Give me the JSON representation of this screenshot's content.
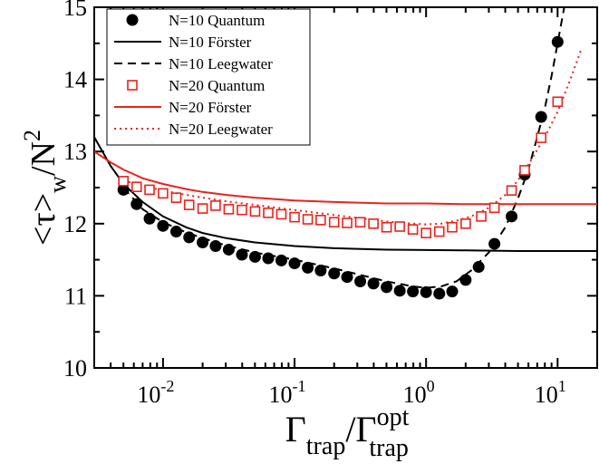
{
  "chart_data": {
    "type": "scatter",
    "xscale": "log",
    "xlim": [
      0.003,
      20
    ],
    "ylim": [
      10,
      15
    ],
    "grid": false,
    "legend_position": "top-left",
    "xlabel": {
      "main": "Γ",
      "sub1": "trap",
      "slash": "/Γ",
      "sup2": "opt",
      "sub2": "trap"
    },
    "ylabel": {
      "main": "<τ>",
      "sub": "w",
      "slash": "/N",
      "sup": "2"
    },
    "x_ticks": [
      {
        "value": 0.01,
        "base": "10",
        "exp": "-2"
      },
      {
        "value": 0.1,
        "base": "10",
        "exp": "-1"
      },
      {
        "value": 1,
        "base": "10",
        "exp": "0"
      },
      {
        "value": 10,
        "base": "10",
        "exp": "1"
      }
    ],
    "y_ticks": [
      10,
      11,
      12,
      13,
      14,
      15
    ],
    "colors": {
      "black": "#000000",
      "red": "#e8231c"
    },
    "series": [
      {
        "name": "N=10 Quantum",
        "kind": "marker",
        "marker": "filled-circle",
        "color": "#000000",
        "points": [
          [
            0.005,
            12.47
          ],
          [
            0.0063,
            12.27
          ],
          [
            0.0079,
            12.07
          ],
          [
            0.01,
            11.97
          ],
          [
            0.0126,
            11.89
          ],
          [
            0.0158,
            11.81
          ],
          [
            0.02,
            11.74
          ],
          [
            0.0251,
            11.69
          ],
          [
            0.0316,
            11.64
          ],
          [
            0.0398,
            11.57
          ],
          [
            0.0501,
            11.54
          ],
          [
            0.0631,
            11.52
          ],
          [
            0.0794,
            11.49
          ],
          [
            0.1,
            11.45
          ],
          [
            0.126,
            11.39
          ],
          [
            0.158,
            11.35
          ],
          [
            0.2,
            11.31
          ],
          [
            0.251,
            11.26
          ],
          [
            0.316,
            11.2
          ],
          [
            0.398,
            11.17
          ],
          [
            0.501,
            11.12
          ],
          [
            0.631,
            11.07
          ],
          [
            0.794,
            11.06
          ],
          [
            1.0,
            11.05
          ],
          [
            1.26,
            11.03
          ],
          [
            1.58,
            11.06
          ],
          [
            2.0,
            11.22
          ],
          [
            2.51,
            11.4
          ],
          [
            3.31,
            11.72
          ],
          [
            4.47,
            12.1
          ],
          [
            5.62,
            12.68
          ],
          [
            7.5,
            13.48
          ],
          [
            10.0,
            14.52
          ]
        ]
      },
      {
        "name": "N=10 Förster",
        "kind": "line",
        "dash": "solid",
        "color": "#000000",
        "points": [
          [
            0.003,
            13.2
          ],
          [
            0.004,
            12.8
          ],
          [
            0.005,
            12.55
          ],
          [
            0.007,
            12.3
          ],
          [
            0.01,
            12.1
          ],
          [
            0.015,
            11.95
          ],
          [
            0.02,
            11.87
          ],
          [
            0.03,
            11.8
          ],
          [
            0.05,
            11.74
          ],
          [
            0.1,
            11.69
          ],
          [
            0.2,
            11.66
          ],
          [
            0.5,
            11.64
          ],
          [
            1,
            11.635
          ],
          [
            2,
            11.63
          ],
          [
            5,
            11.62
          ],
          [
            10,
            11.62
          ],
          [
            20,
            11.62
          ]
        ]
      },
      {
        "name": "N=10 Leegwater",
        "kind": "line",
        "dash": "dashed",
        "color": "#000000",
        "points": [
          [
            0.005,
            12.5
          ],
          [
            0.007,
            12.2
          ],
          [
            0.01,
            12.02
          ],
          [
            0.015,
            11.88
          ],
          [
            0.02,
            11.8
          ],
          [
            0.03,
            11.7
          ],
          [
            0.05,
            11.6
          ],
          [
            0.1,
            11.5
          ],
          [
            0.2,
            11.38
          ],
          [
            0.3,
            11.3
          ],
          [
            0.5,
            11.2
          ],
          [
            0.8,
            11.13
          ],
          [
            1.0,
            11.11
          ],
          [
            1.3,
            11.13
          ],
          [
            1.7,
            11.2
          ],
          [
            2.2,
            11.35
          ],
          [
            3.0,
            11.6
          ],
          [
            4.0,
            11.95
          ],
          [
            5.0,
            12.35
          ],
          [
            6.0,
            12.75
          ],
          [
            7.0,
            13.2
          ],
          [
            8.0,
            13.6
          ],
          [
            9.0,
            14.05
          ],
          [
            10.0,
            14.5
          ],
          [
            11.5,
            15.1
          ]
        ]
      },
      {
        "name": "N=20 Quantum",
        "kind": "marker",
        "marker": "open-square",
        "color": "#e8231c",
        "points": [
          [
            0.005,
            12.59
          ],
          [
            0.0063,
            12.51
          ],
          [
            0.0079,
            12.47
          ],
          [
            0.01,
            12.42
          ],
          [
            0.0126,
            12.36
          ],
          [
            0.0158,
            12.26
          ],
          [
            0.02,
            12.21
          ],
          [
            0.0251,
            12.25
          ],
          [
            0.0316,
            12.2
          ],
          [
            0.0398,
            12.19
          ],
          [
            0.0501,
            12.17
          ],
          [
            0.0631,
            12.15
          ],
          [
            0.0794,
            12.13
          ],
          [
            0.1,
            12.09
          ],
          [
            0.126,
            12.06
          ],
          [
            0.158,
            12.05
          ],
          [
            0.2,
            12.02
          ],
          [
            0.251,
            12.01
          ],
          [
            0.316,
            12.02
          ],
          [
            0.398,
            12.0
          ],
          [
            0.501,
            11.95
          ],
          [
            0.631,
            11.96
          ],
          [
            0.794,
            11.92
          ],
          [
            1.0,
            11.87
          ],
          [
            1.26,
            11.89
          ],
          [
            1.58,
            11.95
          ],
          [
            2.0,
            12.0
          ],
          [
            2.63,
            12.1
          ],
          [
            3.31,
            12.22
          ],
          [
            4.47,
            12.46
          ],
          [
            5.62,
            12.74
          ],
          [
            7.5,
            13.19
          ],
          [
            10.0,
            13.69
          ]
        ]
      },
      {
        "name": "N=20 Förster",
        "kind": "line",
        "dash": "solid",
        "color": "#e8231c",
        "points": [
          [
            0.003,
            13.0
          ],
          [
            0.004,
            12.85
          ],
          [
            0.005,
            12.75
          ],
          [
            0.007,
            12.63
          ],
          [
            0.01,
            12.55
          ],
          [
            0.015,
            12.48
          ],
          [
            0.02,
            12.44
          ],
          [
            0.03,
            12.4
          ],
          [
            0.05,
            12.36
          ],
          [
            0.1,
            12.32
          ],
          [
            0.2,
            12.3
          ],
          [
            0.5,
            12.28
          ],
          [
            1,
            12.28
          ],
          [
            2,
            12.27
          ],
          [
            5,
            12.27
          ],
          [
            10,
            12.27
          ],
          [
            20,
            12.27
          ]
        ]
      },
      {
        "name": "N=20 Leegwater",
        "kind": "line",
        "dash": "dotted",
        "color": "#e8231c",
        "points": [
          [
            0.005,
            12.6
          ],
          [
            0.007,
            12.52
          ],
          [
            0.01,
            12.46
          ],
          [
            0.015,
            12.4
          ],
          [
            0.02,
            12.36
          ],
          [
            0.03,
            12.31
          ],
          [
            0.05,
            12.26
          ],
          [
            0.1,
            12.19
          ],
          [
            0.2,
            12.12
          ],
          [
            0.3,
            12.08
          ],
          [
            0.5,
            12.03
          ],
          [
            0.8,
            12.0
          ],
          [
            1.0,
            11.99
          ],
          [
            1.3,
            12.0
          ],
          [
            1.7,
            12.04
          ],
          [
            2.2,
            12.1
          ],
          [
            3.0,
            12.22
          ],
          [
            4.0,
            12.4
          ],
          [
            5.0,
            12.6
          ],
          [
            6.0,
            12.82
          ],
          [
            8.0,
            13.2
          ],
          [
            10.0,
            13.55
          ],
          [
            12.5,
            14.0
          ],
          [
            15.0,
            14.4
          ]
        ]
      }
    ]
  }
}
